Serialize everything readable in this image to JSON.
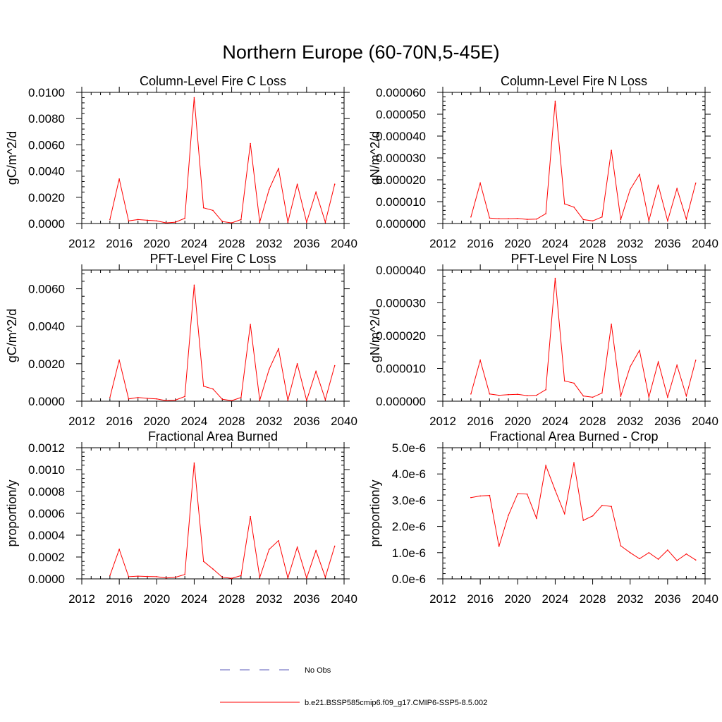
{
  "figure": {
    "title": "Northern Europe (60-70N,5-45E)"
  },
  "legend": {
    "entries": [
      {
        "label": "No Obs",
        "style": "dashed",
        "color": "#5a5ab8"
      },
      {
        "label": "b.e21.BSSP585cmip6.f09_g17.CMIP6-SSP5-8.5.002",
        "style": "solid",
        "color": "#ff0000"
      }
    ]
  },
  "colors": {
    "series": "#ff0000",
    "axis": "#000000"
  },
  "chart_data": [
    {
      "type": "line",
      "title": "Column-Level Fire C Loss",
      "ylabel": "gC/m^2/d",
      "xlim": [
        2012,
        2040
      ],
      "ylim": [
        0,
        0.01
      ],
      "x_ticks": [
        "2012",
        "2016",
        "2020",
        "2024",
        "2028",
        "2032",
        "2036",
        "2040"
      ],
      "y_ticks": [
        {
          "value": 0,
          "label": "0.0000"
        },
        {
          "value": 0.002,
          "label": "0.0020"
        },
        {
          "value": 0.004,
          "label": "0.0040"
        },
        {
          "value": 0.006,
          "label": "0.0060"
        },
        {
          "value": 0.008,
          "label": "0.0080"
        },
        {
          "value": 0.01,
          "label": "0.0100"
        }
      ],
      "x": [
        2015,
        2016,
        2017,
        2018,
        2019,
        2020,
        2021,
        2022,
        2023,
        2024,
        2025,
        2026,
        2027,
        2028,
        2029,
        2030,
        2031,
        2032,
        2033,
        2034,
        2035,
        2036,
        2037,
        2038,
        2039
      ],
      "values": [
        0.0003,
        0.0034,
        0.0002,
        0.0003,
        0.00025,
        0.0002,
        5e-05,
        0.0001,
        0.0004,
        0.0096,
        0.0012,
        0.001,
        0.00015,
        5e-05,
        0.0003,
        0.0061,
        0.0001,
        0.0026,
        0.0042,
        0.0001,
        0.003,
        0.0001,
        0.0024,
        0.0001,
        0.003
      ]
    },
    {
      "type": "line",
      "title": "Column-Level Fire N Loss",
      "ylabel": "gN/m^2/d",
      "xlim": [
        2012,
        2040
      ],
      "ylim": [
        0,
        6e-05
      ],
      "x_ticks": [
        "2012",
        "2016",
        "2020",
        "2024",
        "2028",
        "2032",
        "2036",
        "2040"
      ],
      "y_ticks": [
        {
          "value": 0,
          "label": "0.000000"
        },
        {
          "value": 1e-05,
          "label": "0.000010"
        },
        {
          "value": 2e-05,
          "label": "0.000020"
        },
        {
          "value": 3e-05,
          "label": "0.000030"
        },
        {
          "value": 4e-05,
          "label": "0.000040"
        },
        {
          "value": 5e-05,
          "label": "0.000050"
        },
        {
          "value": 6e-05,
          "label": "0.000060"
        }
      ],
      "x": [
        2015,
        2016,
        2017,
        2018,
        2019,
        2020,
        2021,
        2022,
        2023,
        2024,
        2025,
        2026,
        2027,
        2028,
        2029,
        2030,
        2031,
        2032,
        2033,
        2034,
        2035,
        2036,
        2037,
        2038,
        2039
      ],
      "values": [
        3e-06,
        1.85e-05,
        2.5e-06,
        2.2e-06,
        2.2e-06,
        2.3e-06,
        1.9e-06,
        2e-06,
        4.5e-06,
        5.6e-05,
        9e-06,
        7.5e-06,
        1.8e-06,
        1.2e-06,
        3e-06,
        3.35e-05,
        1.8e-06,
        1.55e-05,
        2.25e-05,
        1.2e-06,
        1.75e-05,
        1.2e-06,
        1.6e-05,
        2e-06,
        1.85e-05
      ]
    },
    {
      "type": "line",
      "title": "PFT-Level Fire C Loss",
      "ylabel": "gC/m^2/d",
      "xlim": [
        2012,
        2040
      ],
      "ylim": [
        0,
        0.007
      ],
      "x_ticks": [
        "2012",
        "2016",
        "2020",
        "2024",
        "2028",
        "2032",
        "2036",
        "2040"
      ],
      "y_ticks": [
        {
          "value": 0,
          "label": "0.0000"
        },
        {
          "value": 0.002,
          "label": "0.0020"
        },
        {
          "value": 0.004,
          "label": "0.0040"
        },
        {
          "value": 0.006,
          "label": "0.0060"
        }
      ],
      "x": [
        2015,
        2016,
        2017,
        2018,
        2019,
        2020,
        2021,
        2022,
        2023,
        2024,
        2025,
        2026,
        2027,
        2028,
        2029,
        2030,
        2031,
        2032,
        2033,
        2034,
        2035,
        2036,
        2037,
        2038,
        2039
      ],
      "values": [
        0.0002,
        0.0022,
        0.00012,
        0.0002,
        0.00015,
        0.00012,
        3e-05,
        6e-05,
        0.00025,
        0.0062,
        0.0008,
        0.00065,
        0.0001,
        3e-05,
        0.0002,
        0.0041,
        5e-05,
        0.0017,
        0.0028,
        4e-05,
        0.002,
        4e-05,
        0.0016,
        8e-05,
        0.0019
      ]
    },
    {
      "type": "line",
      "title": "PFT-Level Fire N Loss",
      "ylabel": "gN/m^2/d",
      "xlim": [
        2012,
        2040
      ],
      "ylim": [
        0,
        4e-05
      ],
      "x_ticks": [
        "2012",
        "2016",
        "2020",
        "2024",
        "2028",
        "2032",
        "2036",
        "2040"
      ],
      "y_ticks": [
        {
          "value": 0,
          "label": "0.000000"
        },
        {
          "value": 1e-05,
          "label": "0.000010"
        },
        {
          "value": 2e-05,
          "label": "0.000020"
        },
        {
          "value": 3e-05,
          "label": "0.000030"
        },
        {
          "value": 4e-05,
          "label": "0.000040"
        }
      ],
      "x": [
        2015,
        2016,
        2017,
        2018,
        2019,
        2020,
        2021,
        2022,
        2023,
        2024,
        2025,
        2026,
        2027,
        2028,
        2029,
        2030,
        2031,
        2032,
        2033,
        2034,
        2035,
        2036,
        2037,
        2038,
        2039
      ],
      "values": [
        2.2e-06,
        1.25e-05,
        2.2e-06,
        1.8e-06,
        2e-06,
        2.1e-06,
        1.7e-06,
        1.8e-06,
        3.5e-06,
        3.75e-05,
        6.2e-06,
        5.5e-06,
        1.6e-06,
        1.2e-06,
        2.5e-06,
        2.35e-05,
        1.5e-06,
        1.05e-05,
        1.55e-05,
        1.2e-06,
        1.2e-05,
        1.2e-06,
        1.1e-05,
        1.6e-06,
        1.25e-05
      ]
    },
    {
      "type": "line",
      "title": "Fractional Area Burned",
      "ylabel": "proportion/y",
      "xlim": [
        2012,
        2040
      ],
      "ylim": [
        0,
        0.0012
      ],
      "x_ticks": [
        "2012",
        "2016",
        "2020",
        "2024",
        "2028",
        "2032",
        "2036",
        "2040"
      ],
      "y_ticks": [
        {
          "value": 0,
          "label": "0.0000"
        },
        {
          "value": 0.0002,
          "label": "0.0002"
        },
        {
          "value": 0.0004,
          "label": "0.0004"
        },
        {
          "value": 0.0006,
          "label": "0.0006"
        },
        {
          "value": 0.0008,
          "label": "0.0008"
        },
        {
          "value": 0.001,
          "label": "0.0010"
        },
        {
          "value": 0.0012,
          "label": "0.0012"
        }
      ],
      "x": [
        2015,
        2016,
        2017,
        2018,
        2019,
        2020,
        2021,
        2022,
        2023,
        2024,
        2025,
        2026,
        2027,
        2028,
        2029,
        2030,
        2031,
        2032,
        2033,
        2034,
        2035,
        2036,
        2037,
        2038,
        2039
      ],
      "values": [
        3e-05,
        0.00027,
        2e-05,
        2.5e-05,
        2.2e-05,
        2e-05,
        8e-06,
        1.5e-05,
        4e-05,
        0.00106,
        0.00016,
        9e-05,
        1.5e-05,
        5e-06,
        3e-05,
        0.00057,
        1.2e-05,
        0.00027,
        0.00035,
        8e-06,
        0.00029,
        8e-06,
        0.00026,
        1.5e-05,
        0.0003
      ]
    },
    {
      "type": "line",
      "title": "Fractional Area Burned - Crop",
      "ylabel": "proportion/y",
      "xlim": [
        2012,
        2040
      ],
      "ylim": [
        0,
        5e-06
      ],
      "x_ticks": [
        "2012",
        "2016",
        "2020",
        "2024",
        "2028",
        "2032",
        "2036",
        "2040"
      ],
      "y_ticks": [
        {
          "value": 0,
          "label": "0.0e-6"
        },
        {
          "value": 1e-06,
          "label": "1.0e-6"
        },
        {
          "value": 2e-06,
          "label": "2.0e-6"
        },
        {
          "value": 3e-06,
          "label": "3.0e-6"
        },
        {
          "value": 4e-06,
          "label": "4.0e-6"
        },
        {
          "value": 5e-06,
          "label": "5.0e-6"
        }
      ],
      "x": [
        2015,
        2016,
        2017,
        2018,
        2019,
        2020,
        2021,
        2022,
        2023,
        2024,
        2025,
        2026,
        2027,
        2028,
        2029,
        2030,
        2031,
        2032,
        2033,
        2034,
        2035,
        2036,
        2037,
        2038,
        2039
      ],
      "values": [
        3.1e-06,
        3.16e-06,
        3.18e-06,
        1.24e-06,
        2.42e-06,
        3.25e-06,
        3.23e-06,
        2.31e-06,
        4.32e-06,
        3.38e-06,
        2.48e-06,
        4.43e-06,
        2.23e-06,
        2.4e-06,
        2.8e-06,
        2.76e-06,
        1.26e-06,
        1e-06,
        7.7e-07,
        1e-06,
        7.5e-07,
        1.1e-06,
        7e-07,
        9.5e-07,
        7.2e-07
      ]
    }
  ]
}
